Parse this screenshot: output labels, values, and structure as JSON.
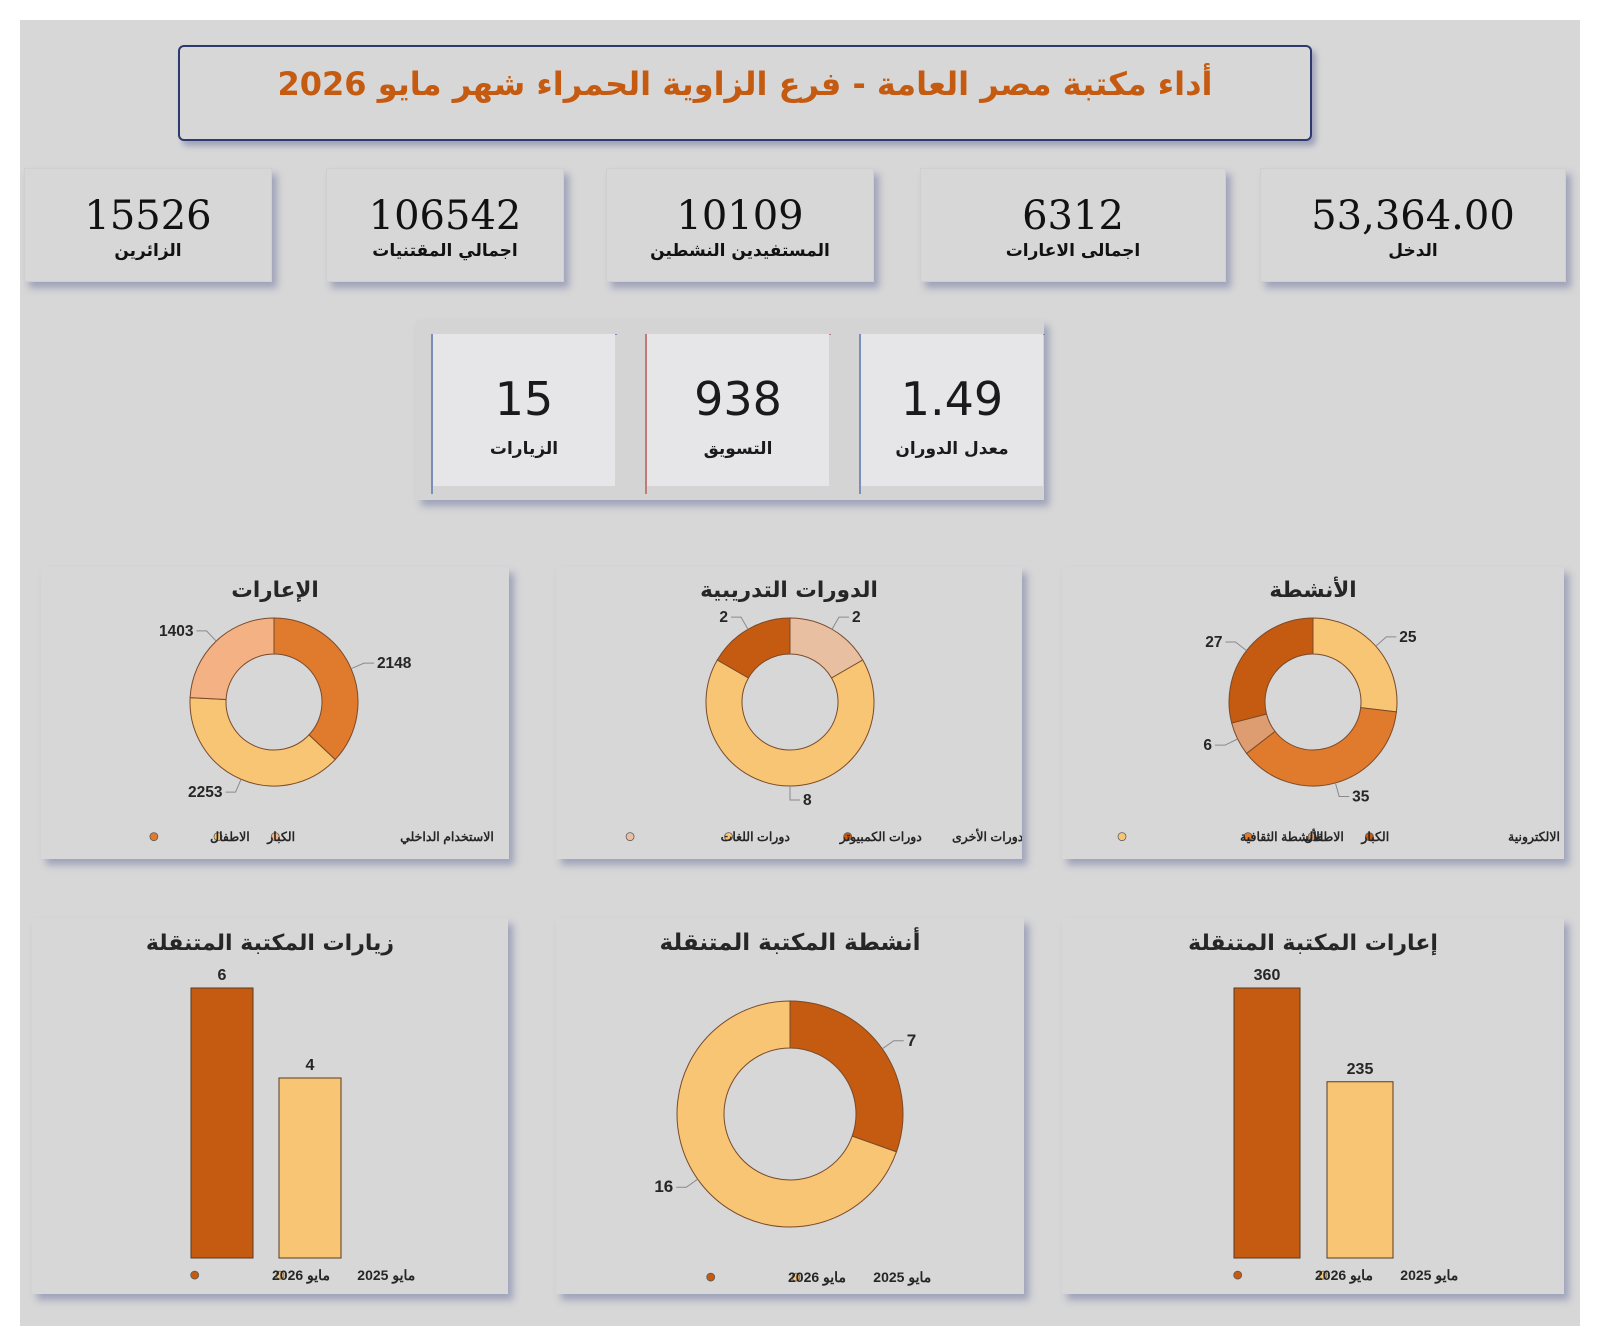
{
  "title": "أداء مكتبة مصر العامة - فرع الزاوية الحمراء شهر مايو 2026",
  "kpis": [
    {
      "value": "53,364.00",
      "label": "الدخل"
    },
    {
      "value": "6312",
      "label": "اجمالى الاعارات"
    },
    {
      "value": "10109",
      "label": "المستفيدين النشطين"
    },
    {
      "value": "106542",
      "label": "اجمالي المقتنيات"
    },
    {
      "value": "15526",
      "label": "الزائرين"
    }
  ],
  "cards": [
    {
      "value": "1.49",
      "label": "معدل الدوران"
    },
    {
      "value": "938",
      "label": "التسويق"
    },
    {
      "value": "15",
      "label": "الزيارات"
    }
  ],
  "colors": {
    "dark": "#c55a11",
    "mid": "#e07b2d",
    "light": "#f8c574",
    "peach": "#f4b183",
    "pale": "#e8bfa0",
    "tan": "#dd9d70",
    "title": "#c55a11",
    "frame": "#2e3a6e"
  },
  "chart_data": [
    {
      "id": "activities",
      "type": "pie",
      "donut": true,
      "title": "الأنشطة",
      "labels": [
        "الانشطة الالكترونية",
        "الكبار",
        "الاطفال",
        "الأنشطة الثقافية"
      ],
      "slices": [
        {
          "value": 25,
          "color": "#f8c574"
        },
        {
          "value": 35,
          "color": "#e07b2d"
        },
        {
          "value": 6,
          "color": "#dd9d70"
        },
        {
          "value": 27,
          "color": "#c55a11"
        }
      ],
      "legend": [
        {
          "label": "الانشطة الالكترونية",
          "color": "#c55a11"
        },
        {
          "label": "الكبار",
          "color": "#dd9d70"
        },
        {
          "label": "الاطفال",
          "color": "#e07b2d"
        },
        {
          "label": "الأنشطة الثقافية",
          "color": "#f8c574"
        }
      ]
    },
    {
      "id": "courses",
      "type": "pie",
      "donut": true,
      "title": "الدورات التدريبية",
      "slices": [
        {
          "value": 2,
          "color": "#e8bfa0"
        },
        {
          "value": 8,
          "color": "#f8c574"
        },
        {
          "value": 2,
          "color": "#c55a11"
        }
      ],
      "legend": [
        {
          "label": "الدورات الأخرى",
          "color": "#c55a11"
        },
        {
          "label": "دورات الكمبيوتر",
          "color": "#f8c574"
        },
        {
          "label": "دورات اللغات",
          "color": "#e8bfa0"
        }
      ]
    },
    {
      "id": "loans",
      "type": "pie",
      "donut": true,
      "title": "الإعارات",
      "slices": [
        {
          "value": 2148,
          "color": "#e07b2d"
        },
        {
          "value": 2253,
          "color": "#f8c574"
        },
        {
          "value": 1403,
          "color": "#f4b183"
        }
      ],
      "legend": [
        {
          "label": "الاستخدام الداخلي",
          "color": "#f4b183"
        },
        {
          "label": "الكبار",
          "color": "#f8c574"
        },
        {
          "label": "الاطفال",
          "color": "#e07b2d"
        }
      ]
    },
    {
      "id": "mobile_loans",
      "type": "bar",
      "title": "إعارات المكتبة المتنقلة",
      "categories": [
        "مايو 2026",
        "مايو 2025"
      ],
      "values": [
        360,
        235
      ],
      "colors": [
        "#c55a11",
        "#f8c574"
      ],
      "ylim": [
        0,
        360
      ]
    },
    {
      "id": "mobile_activities",
      "type": "pie",
      "donut": true,
      "title": "أنشطة المكتبة المتنقلة",
      "slices": [
        {
          "value": 7,
          "color": "#c55a11"
        },
        {
          "value": 16,
          "color": "#f8c574"
        }
      ],
      "legend": [
        {
          "label": "مايو 2025",
          "color": "#f8c574"
        },
        {
          "label": "مايو 2026",
          "color": "#c55a11"
        }
      ]
    },
    {
      "id": "mobile_visits",
      "type": "bar",
      "title": "زيارات المكتبة المتنقلة",
      "categories": [
        "مايو 2026",
        "مايو 2025"
      ],
      "values": [
        6,
        4
      ],
      "colors": [
        "#c55a11",
        "#f8c574"
      ],
      "ylim": [
        0,
        6
      ]
    }
  ]
}
